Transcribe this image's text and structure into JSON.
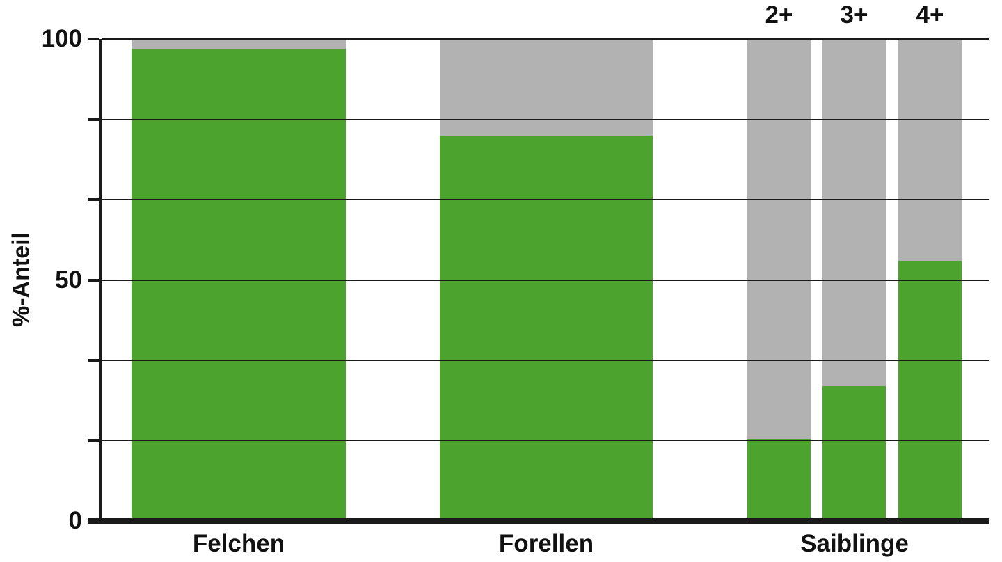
{
  "chart_data": {
    "type": "bar",
    "stacked": true,
    "title": "",
    "xlabel": "",
    "ylabel": "%-Anteil",
    "ylim": [
      0,
      100
    ],
    "ytick_labels": [
      {
        "value": 0,
        "label": "0"
      },
      {
        "value": 50,
        "label": "50"
      },
      {
        "value": 100,
        "label": "100"
      }
    ],
    "gridlines_pct": [
      0,
      16.67,
      33.33,
      50,
      66.67,
      83.33,
      100
    ],
    "grid": true,
    "legend": "none",
    "colors": {
      "bottom_segment_green": "#4ca32d",
      "top_segment_gray": "#b2b2b2",
      "axis_and_grid": "#1a1a1a",
      "text": "#111111",
      "background": "#ffffff"
    },
    "groups": [
      {
        "label": "Felchen",
        "bars": [
          {
            "age_label": "",
            "green_pct": 98,
            "gray_pct": 2
          }
        ]
      },
      {
        "label": "Forellen",
        "bars": [
          {
            "age_label": "",
            "green_pct": 80,
            "gray_pct": 20
          }
        ]
      },
      {
        "label": "Saiblinge",
        "bars": [
          {
            "age_label": "2+",
            "green_pct": 17,
            "gray_pct": 83
          },
          {
            "age_label": "3+",
            "green_pct": 28,
            "gray_pct": 72
          },
          {
            "age_label": "4+",
            "green_pct": 54,
            "gray_pct": 46
          }
        ]
      }
    ]
  }
}
